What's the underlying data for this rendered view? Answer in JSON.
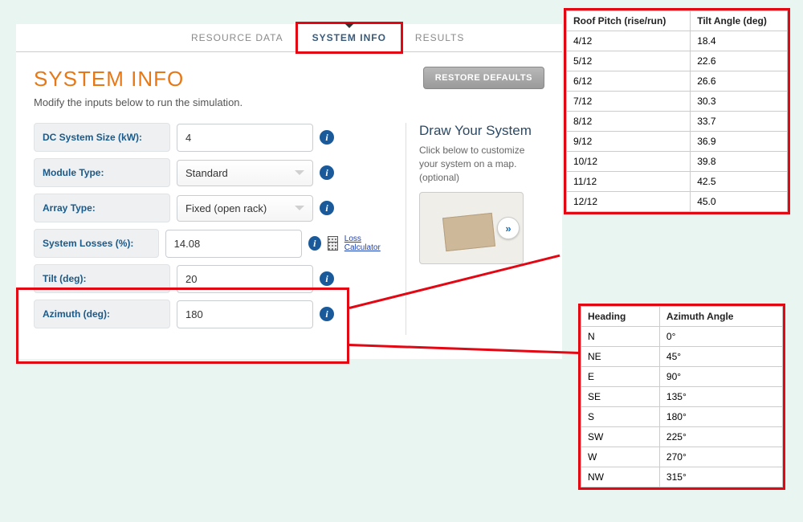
{
  "tabs": {
    "resource": "RESOURCE DATA",
    "system": "SYSTEM INFO",
    "results": "RESULTS"
  },
  "page": {
    "title": "SYSTEM INFO",
    "subtitle": "Modify the inputs below to run the simulation.",
    "restore": "RESTORE DEFAULTS"
  },
  "form": {
    "dc_label": "DC System Size (kW):",
    "dc_value": "4",
    "module_label": "Module Type:",
    "module_value": "Standard",
    "array_label": "Array Type:",
    "array_value": "Fixed (open rack)",
    "losses_label": "System Losses (%):",
    "losses_value": "14.08",
    "loss_calc": "Loss Calculator",
    "tilt_label": "Tilt (deg):",
    "tilt_value": "20",
    "azimuth_label": "Azimuth (deg):",
    "azimuth_value": "180"
  },
  "side": {
    "title": "Draw Your System",
    "desc": "Click below to customize your system on a map. (optional)"
  },
  "pitch_table": {
    "h1": "Roof Pitch (rise/run)",
    "h2": "Tilt Angle (deg)",
    "rows": [
      [
        "4/12",
        "18.4"
      ],
      [
        "5/12",
        "22.6"
      ],
      [
        "6/12",
        "26.6"
      ],
      [
        "7/12",
        "30.3"
      ],
      [
        "8/12",
        "33.7"
      ],
      [
        "9/12",
        "36.9"
      ],
      [
        "10/12",
        "39.8"
      ],
      [
        "11/12",
        "42.5"
      ],
      [
        "12/12",
        "45.0"
      ]
    ]
  },
  "azimuth_table": {
    "h1": "Heading",
    "h2": "Azimuth Angle",
    "rows": [
      [
        "N",
        "0°"
      ],
      [
        "NE",
        "45°"
      ],
      [
        "E",
        "90°"
      ],
      [
        "SE",
        "135°"
      ],
      [
        "S",
        "180°"
      ],
      [
        "SW",
        "225°"
      ],
      [
        "W",
        "270°"
      ],
      [
        "NW",
        "315°"
      ]
    ]
  }
}
